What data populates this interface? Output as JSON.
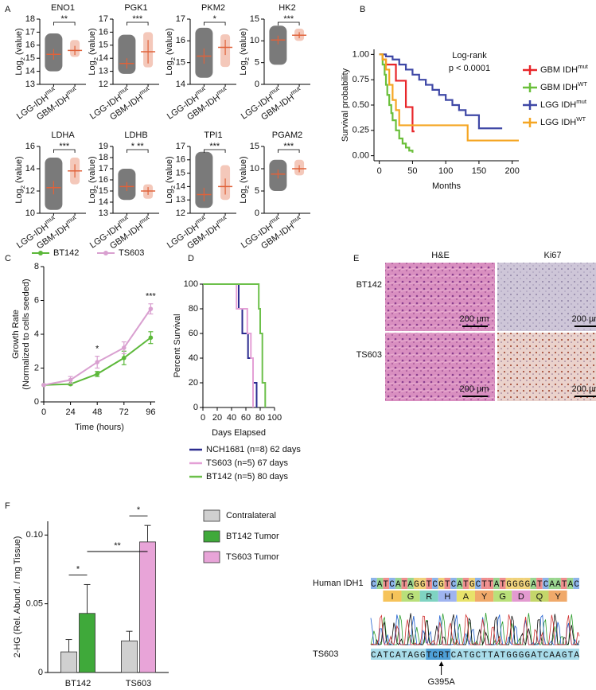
{
  "panels": [
    "A",
    "B",
    "C",
    "D",
    "E",
    "F"
  ],
  "chart_data": [
    {
      "type": "strip",
      "title": "ENO1",
      "ylabel": [
        "Log",
        "2",
        " (value)"
      ],
      "categories": [
        [
          "LGG-IDH",
          "mut"
        ],
        [
          "GBM-IDH",
          "mut"
        ]
      ],
      "colors": [
        "#222222",
        "#e0623a"
      ],
      "ylim": [
        13,
        18
      ],
      "yticks": [
        13,
        14,
        15,
        16,
        17,
        18
      ],
      "groups": [
        {
          "mean": 15.3,
          "sd": 0.4,
          "min": 14.0,
          "max": 16.9
        },
        {
          "mean": 15.6,
          "sd": 0.35,
          "min": 15.1,
          "max": 16.4
        }
      ],
      "significance": "**"
    },
    {
      "type": "strip",
      "title": "PGK1",
      "ylabel": [
        "Log",
        "2",
        " (value)"
      ],
      "categories": [
        [
          "LGG-IDH",
          "mut"
        ],
        [
          "GBM-IDH",
          "mut"
        ]
      ],
      "colors": [
        "#222222",
        "#e0623a"
      ],
      "ylim": [
        12,
        17
      ],
      "yticks": [
        12,
        13,
        14,
        15,
        16,
        17
      ],
      "groups": [
        {
          "mean": 13.6,
          "sd": 0.4,
          "min": 12.8,
          "max": 15.8
        },
        {
          "mean": 14.5,
          "sd": 0.9,
          "min": 13.3,
          "max": 16.0
        }
      ],
      "significance": "***"
    },
    {
      "type": "strip",
      "title": "PKM2",
      "ylabel": [
        "Log",
        "2",
        " (value)"
      ],
      "categories": [
        [
          "LGG-IDH",
          "mut"
        ],
        [
          "GBM-IDH",
          "mut"
        ]
      ],
      "colors": [
        "#222222",
        "#e0623a"
      ],
      "ylim": [
        14,
        17
      ],
      "yticks": [
        14,
        15,
        16,
        17
      ],
      "groups": [
        {
          "mean": 15.3,
          "sd": 0.35,
          "min": 14.3,
          "max": 16.6
        },
        {
          "mean": 15.7,
          "sd": 0.35,
          "min": 14.8,
          "max": 16.3
        }
      ],
      "significance": "*"
    },
    {
      "type": "strip",
      "title": "HK2",
      "ylabel": [
        "Log",
        "2",
        " (value)"
      ],
      "categories": [
        [
          "LGG-IDH",
          "mut"
        ],
        [
          "GBM-IDH",
          "mut"
        ]
      ],
      "colors": [
        "#222222",
        "#e0623a"
      ],
      "ylim": [
        0,
        15
      ],
      "yticks": [
        0,
        5,
        10,
        15
      ],
      "groups": [
        {
          "mean": 10.2,
          "sd": 1.0,
          "min": 4.5,
          "max": 13.5
        },
        {
          "mean": 11.3,
          "sd": 0.7,
          "min": 10.0,
          "max": 12.8
        }
      ],
      "significance": "***"
    },
    {
      "type": "strip",
      "title": "LDHA",
      "ylabel": [
        "Log",
        "2",
        " (value)"
      ],
      "categories": [
        [
          "LGG-IDH",
          "mut"
        ],
        [
          "GBM-IDH",
          "mut"
        ]
      ],
      "colors": [
        "#222222",
        "#e0623a"
      ],
      "ylim": [
        10,
        16
      ],
      "yticks": [
        10,
        12,
        14,
        16
      ],
      "groups": [
        {
          "mean": 12.3,
          "sd": 0.6,
          "min": 10.3,
          "max": 15.0
        },
        {
          "mean": 13.8,
          "sd": 0.6,
          "min": 12.6,
          "max": 15.0
        }
      ],
      "significance": "***"
    },
    {
      "type": "strip",
      "title": "LDHB",
      "ylabel": [
        "Log",
        "2",
        " (value)"
      ],
      "categories": [
        [
          "LGG-IDH",
          "mut"
        ],
        [
          "GBM-IDH",
          "mut"
        ]
      ],
      "colors": [
        "#222222",
        "#e0623a"
      ],
      "ylim": [
        13,
        19
      ],
      "yticks": [
        13,
        14,
        15,
        16,
        17,
        18,
        19
      ],
      "groups": [
        {
          "mean": 15.4,
          "sd": 0.4,
          "min": 14.2,
          "max": 17.0
        },
        {
          "mean": 15.0,
          "sd": 0.35,
          "min": 14.3,
          "max": 15.6
        }
      ],
      "significance": "* **"
    },
    {
      "type": "strip",
      "title": "TPI1",
      "ylabel": [
        "Log",
        "2",
        " (value)"
      ],
      "categories": [
        [
          "LGG-IDH",
          "mut"
        ],
        [
          "GBM-IDH",
          "mut"
        ]
      ],
      "colors": [
        "#222222",
        "#e0623a"
      ],
      "ylim": [
        12,
        17
      ],
      "yticks": [
        12,
        13,
        14,
        15,
        16,
        17
      ],
      "groups": [
        {
          "mean": 13.4,
          "sd": 0.5,
          "min": 12.4,
          "max": 16.6
        },
        {
          "mean": 14.0,
          "sd": 0.6,
          "min": 13.0,
          "max": 15.6
        }
      ],
      "significance": "***"
    },
    {
      "type": "strip",
      "title": "PGAM2",
      "ylabel": [
        "Log",
        "2",
        " (value)"
      ],
      "categories": [
        [
          "LGG-IDH",
          "mut"
        ],
        [
          "GBM-IDH",
          "mut"
        ]
      ],
      "colors": [
        "#222222",
        "#e0623a"
      ],
      "ylim": [
        0,
        15
      ],
      "yticks": [
        0,
        5,
        10,
        15
      ],
      "groups": [
        {
          "mean": 8.8,
          "sd": 1.0,
          "min": 5.0,
          "max": 12.0
        },
        {
          "mean": 10.0,
          "sd": 0.8,
          "min": 8.5,
          "max": 12.0
        }
      ],
      "significance": "***"
    },
    {
      "type": "km",
      "xlabel": "Months",
      "ylabel": "Survival probability",
      "annotations": [
        "Log-rank",
        "p < 0.0001"
      ],
      "xlim": [
        -8,
        210
      ],
      "xticks": [
        0,
        50,
        100,
        150,
        200
      ],
      "ylim": [
        -0.05,
        1.05
      ],
      "yticks": [
        {
          "value": 0,
          "label": "0.00"
        },
        {
          "value": 0.25,
          "label": "0.25"
        },
        {
          "value": 0.5,
          "label": "0.50"
        },
        {
          "value": 0.75,
          "label": "0.75"
        },
        {
          "value": 1,
          "label": "1.00"
        }
      ],
      "series": [
        {
          "name": [
            "GBM IDH",
            "mut"
          ],
          "color": "#e8262a",
          "x": [
            0,
            5,
            10,
            25,
            40,
            50,
            53
          ],
          "values": [
            1,
            0.95,
            0.9,
            0.74,
            0.48,
            0.24,
            0.24
          ]
        },
        {
          "name": [
            "GBM IDH",
            "WT"
          ],
          "color": "#6abf3a",
          "x": [
            0,
            5,
            8,
            10,
            12,
            15,
            18,
            20,
            25,
            30,
            35,
            40,
            45,
            50
          ],
          "values": [
            1,
            0.9,
            0.8,
            0.7,
            0.6,
            0.5,
            0.42,
            0.35,
            0.25,
            0.17,
            0.12,
            0.08,
            0.05,
            0.03
          ]
        },
        {
          "name": [
            "LGG IDH",
            "mut"
          ],
          "color": "#3f48a6",
          "x": [
            0,
            10,
            20,
            30,
            40,
            50,
            60,
            70,
            80,
            90,
            100,
            110,
            120,
            130,
            150,
            185
          ],
          "values": [
            1,
            0.98,
            0.95,
            0.9,
            0.85,
            0.8,
            0.75,
            0.7,
            0.65,
            0.6,
            0.55,
            0.5,
            0.45,
            0.4,
            0.27,
            0.27
          ]
        },
        {
          "name": [
            "LGG IDH",
            "WT"
          ],
          "color": "#f5a623",
          "x": [
            0,
            5,
            10,
            15,
            20,
            25,
            30,
            133,
            210
          ],
          "values": [
            1,
            0.95,
            0.85,
            0.7,
            0.55,
            0.45,
            0.3,
            0.15,
            0.15
          ]
        }
      ]
    },
    {
      "type": "line",
      "xlabel": "Time (hours)",
      "ylabel": [
        "Growth Rate",
        "(Normalized to cells seeded)"
      ],
      "x": [
        0,
        24,
        48,
        72,
        96
      ],
      "xlim": [
        0,
        100
      ],
      "xticks": [
        0,
        24,
        48,
        72,
        96
      ],
      "ylim": [
        0,
        8
      ],
      "yticks": [
        0,
        2,
        4,
        6,
        8
      ],
      "series": [
        {
          "name": "BT142",
          "color": "#5cb83a",
          "values": [
            1,
            1.05,
            1.65,
            2.6,
            3.8
          ],
          "errors": [
            0,
            0.05,
            0.15,
            0.4,
            0.35
          ]
        },
        {
          "name": "TS603",
          "color": "#d9a0d0",
          "values": [
            1,
            1.3,
            2.35,
            3.2,
            5.5
          ],
          "errors": [
            0,
            0.2,
            0.35,
            0.35,
            0.3
          ]
        }
      ],
      "annotations": [
        {
          "x": 48,
          "text": "*"
        },
        {
          "x": 96,
          "text": "***"
        }
      ]
    },
    {
      "type": "km",
      "xlabel": "Days Elapsed",
      "ylabel": "Percent Survival",
      "xlim": [
        0,
        100
      ],
      "xticks": [
        0,
        20,
        40,
        60,
        80,
        100
      ],
      "ylim": [
        0,
        100
      ],
      "yticks": [
        0,
        20,
        40,
        60,
        80,
        100
      ],
      "series": [
        {
          "name": "NCH1681 (n=8) 62 days",
          "color": "#2b2c8f",
          "x": [
            0,
            50,
            55,
            63,
            70,
            75
          ],
          "values": [
            100,
            80,
            60,
            40,
            20,
            0
          ]
        },
        {
          "name": "TS603 (n=5) 67 days",
          "color": "#e4a0d6",
          "x": [
            0,
            47,
            62,
            67,
            70
          ],
          "values": [
            100,
            80,
            60,
            40,
            0
          ]
        },
        {
          "name": "BT142 (n=5) 80 days",
          "color": "#6cc04a",
          "x": [
            0,
            78,
            80,
            83,
            87
          ],
          "values": [
            100,
            80,
            60,
            20,
            0
          ]
        }
      ]
    },
    {
      "type": "bar",
      "ylabel": "2-HG (Rel. Abund. / mg Tissue)",
      "categories": [
        "BT142",
        "TS603"
      ],
      "ylim": [
        0,
        0.11
      ],
      "yticks": [
        0,
        0.05,
        {
          "value": 0.1,
          "label": "0.10"
        }
      ],
      "series": [
        {
          "name": "Contralateral",
          "color": "#d0d0d0",
          "values": [
            0.015,
            0.023
          ],
          "errors": [
            0.009,
            0.007
          ]
        },
        {
          "name": "BT142 Tumor",
          "color": "#3fa93a",
          "values": [
            0.043,
            null
          ],
          "errors": [
            0.021,
            null
          ]
        },
        {
          "name": "TS603 Tumor",
          "color": "#e8a4d8",
          "values": [
            null,
            0.095
          ],
          "errors": [
            null,
            0.012
          ]
        }
      ],
      "significance": [
        "*",
        "*",
        "**"
      ]
    }
  ],
  "histology": {
    "columns": [
      "H&E",
      "Ki67"
    ],
    "rows": [
      "BT142",
      "TS603"
    ],
    "scale": "200 µm"
  },
  "sequence": {
    "label": "Human IDH1",
    "seq": "CATCATAGGTCGTCATGCTTATGGGGATCAATAC",
    "aa": [
      "I",
      "G",
      "R",
      "H",
      "A",
      "Y",
      "G",
      "D",
      "Q",
      "Y"
    ],
    "sample": "TS603",
    "sample_seq": "CATCATAGGTCRTCATGCTTATGGGGATCAAGTA",
    "mutation": "G395A"
  }
}
